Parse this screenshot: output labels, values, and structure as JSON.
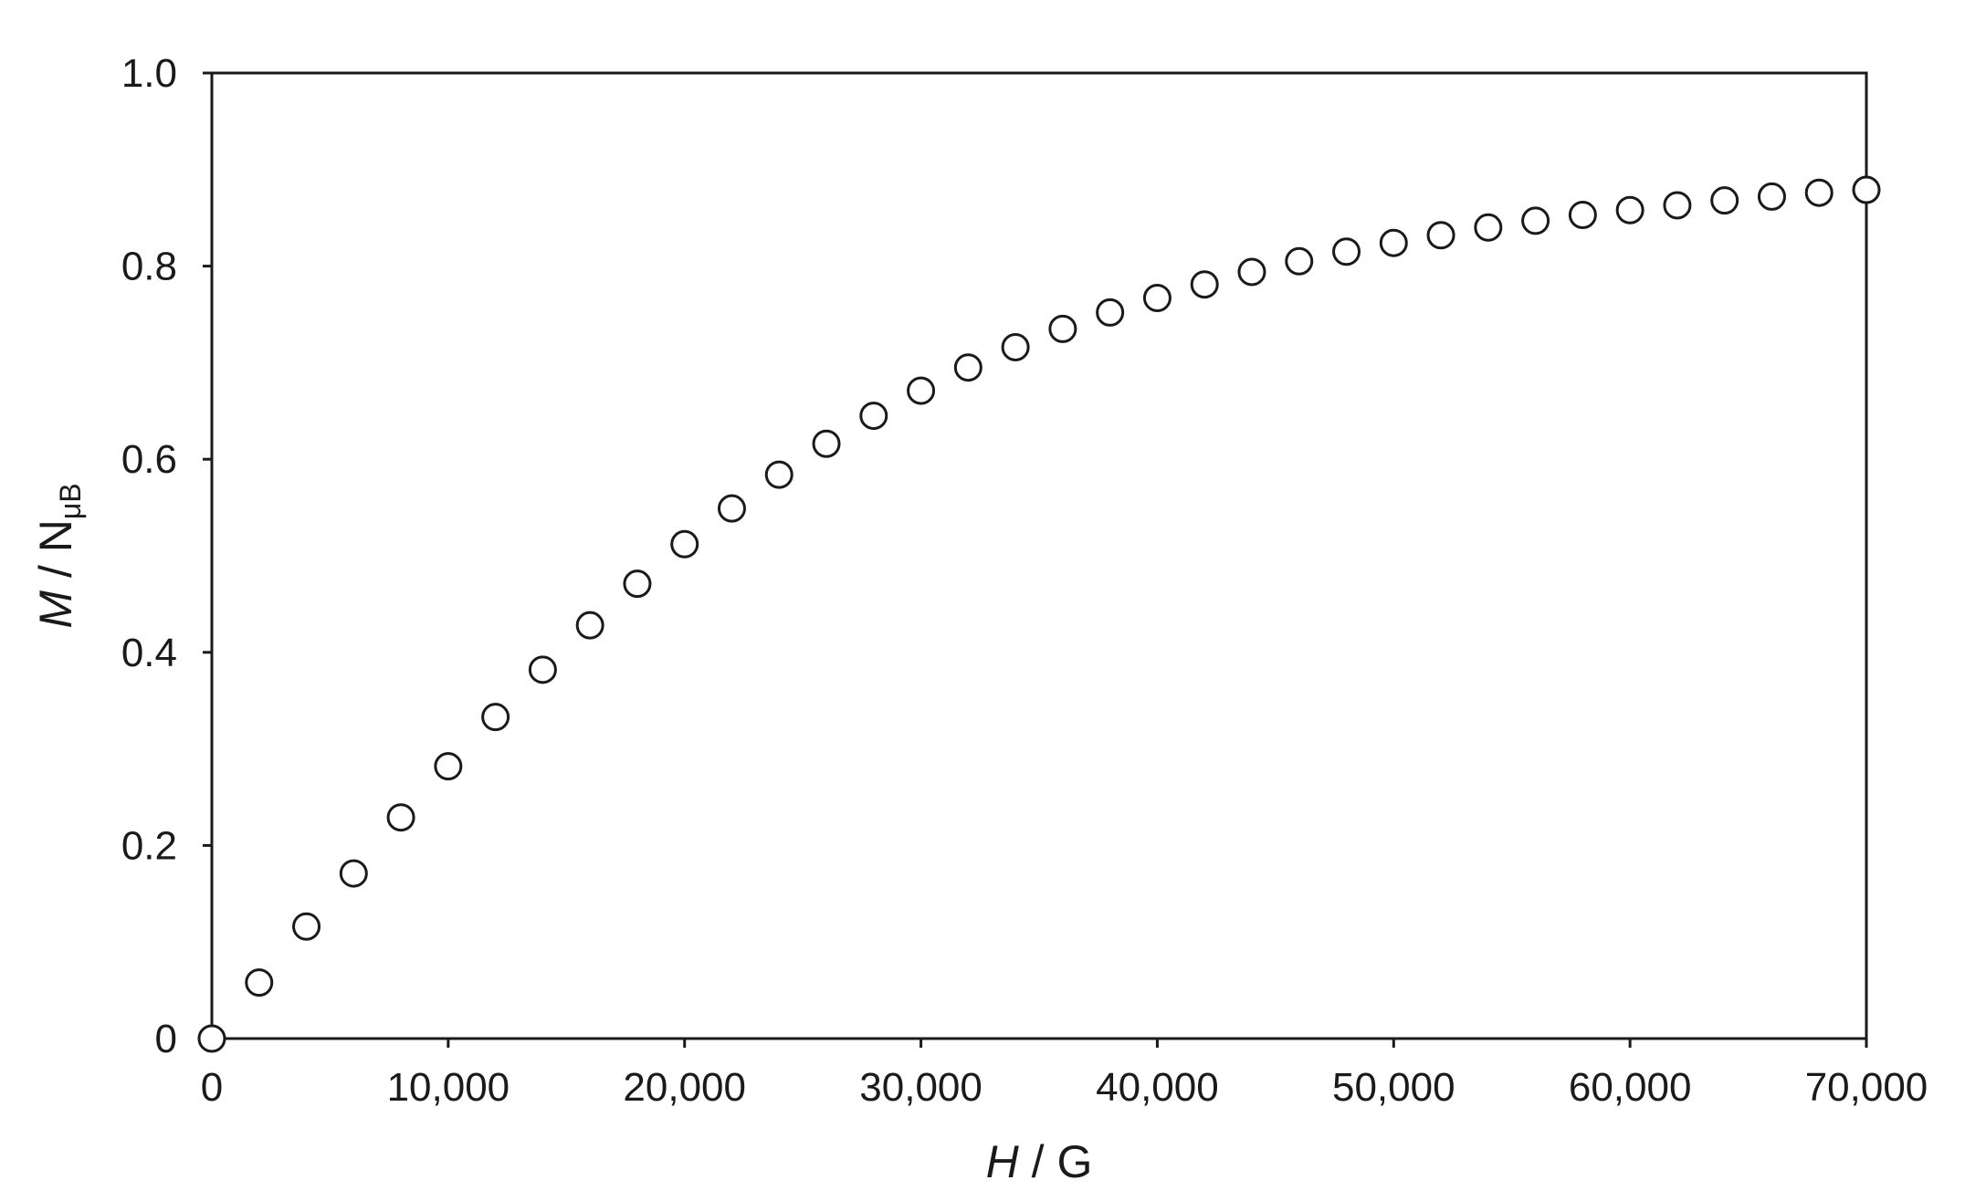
{
  "chart_data": {
    "type": "scatter",
    "title": "",
    "xlabel": {
      "var": "H",
      "sep": " / ",
      "unit": "G"
    },
    "ylabel": {
      "var": "M",
      "sep": " / N",
      "sub": "μB"
    },
    "xlim": [
      0,
      70000
    ],
    "ylim": [
      0,
      1.0
    ],
    "x_ticks": [
      0,
      10000,
      20000,
      30000,
      40000,
      50000,
      60000,
      70000
    ],
    "x_tick_labels": [
      "0",
      "10,000",
      "20,000",
      "30,000",
      "40,000",
      "50,000",
      "60,000",
      "70,000"
    ],
    "y_ticks": [
      0,
      0.2,
      0.4,
      0.6,
      0.8,
      1.0
    ],
    "y_tick_labels": [
      "0",
      "0.2",
      "0.4",
      "0.6",
      "0.8",
      "1.0"
    ],
    "grid": false,
    "legend": "none",
    "marker": "open-circle",
    "marker_color": "#1a1a1a",
    "series": [
      {
        "x": [
          0,
          2000,
          4000,
          6000,
          8000,
          10000,
          12000,
          14000,
          16000,
          18000,
          20000,
          22000,
          24000,
          26000,
          28000,
          30000,
          32000,
          34000,
          36000,
          38000,
          40000,
          42000,
          44000,
          46000,
          48000,
          50000,
          52000,
          54000,
          56000,
          58000,
          60000,
          62000,
          64000,
          66000,
          68000,
          70000
        ],
        "y": [
          0.0,
          0.058,
          0.116,
          0.171,
          0.229,
          0.282,
          0.333,
          0.382,
          0.428,
          0.471,
          0.512,
          0.549,
          0.584,
          0.616,
          0.645,
          0.671,
          0.695,
          0.716,
          0.735,
          0.752,
          0.767,
          0.781,
          0.794,
          0.805,
          0.815,
          0.824,
          0.832,
          0.84,
          0.847,
          0.853,
          0.858,
          0.863,
          0.868,
          0.872,
          0.876,
          0.879
        ]
      }
    ]
  }
}
